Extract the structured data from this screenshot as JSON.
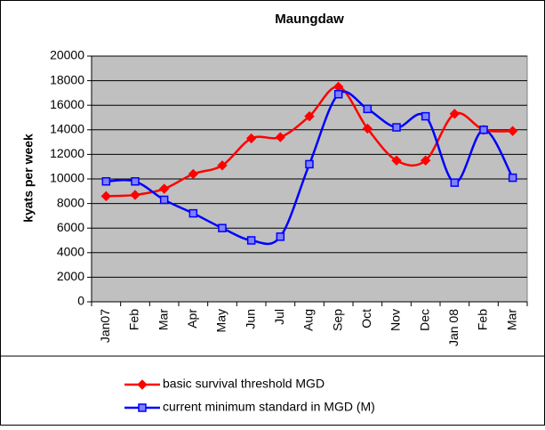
{
  "chart_data": {
    "type": "line",
    "title": "Maungdaw",
    "ylabel": "kyats per week",
    "categories": [
      "Jan07",
      "Feb",
      "Mar",
      "Apr",
      "May",
      "Jun",
      "Jul",
      "Aug",
      "Sep",
      "Oct",
      "Nov",
      "Dec",
      "Jan 08",
      "Feb",
      "Mar"
    ],
    "series": [
      {
        "name": "basic survival threshold MGD",
        "color": "#ff0000",
        "marker": "diamond",
        "values": [
          8600,
          8700,
          9200,
          10400,
          11100,
          13300,
          13400,
          15100,
          17500,
          14100,
          11500,
          11500,
          15300,
          14000,
          13900
        ]
      },
      {
        "name": "current minimum standard in MGD (M)",
        "color": "#0000ff",
        "marker": "square",
        "values": [
          9800,
          9800,
          8300,
          7200,
          6000,
          5000,
          5300,
          11200,
          16900,
          15700,
          14200,
          15100,
          9700,
          14000,
          10100
        ]
      }
    ],
    "ylim": [
      0,
      20000
    ],
    "yticks": [
      0,
      2000,
      4000,
      6000,
      8000,
      10000,
      12000,
      14000,
      16000,
      18000,
      20000
    ],
    "grid": true,
    "legend": "bottom",
    "plot_background": "#c0c0c0"
  }
}
